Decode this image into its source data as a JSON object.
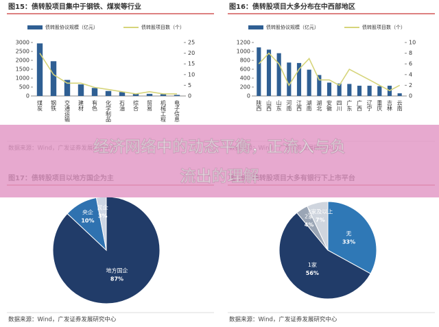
{
  "chart_data": [
    {
      "type": "bar",
      "title": "图15：债转股项目集中于钢铁、煤炭等行业",
      "source": "数据来源：Wind，广发证券发展研究中心",
      "categories": [
        "煤炭",
        "钢铁",
        "交通运输",
        "建材",
        "有色",
        "化学制品",
        "石油",
        "综合",
        "贸易",
        "机械工程",
        "电子信息"
      ],
      "series": [
        {
          "name": "债转股协议规模（亿元）",
          "color": "#2f5f93",
          "values": [
            2950,
            1950,
            900,
            650,
            450,
            280,
            220,
            130,
            120,
            100,
            60
          ]
        },
        {
          "name": "债转股项目数（个）",
          "color": "#d6d47a",
          "axis": "y2",
          "values": [
            20,
            10,
            6,
            6,
            4,
            3,
            2,
            1,
            2,
            1,
            1
          ]
        }
      ],
      "ylim": [
        0,
        3000
      ],
      "yticks": [
        0,
        500,
        1000,
        1500,
        2000,
        2500,
        3000
      ],
      "y2lim": [
        0,
        25
      ],
      "y2ticks": [
        0,
        5,
        10,
        15,
        20,
        25
      ]
    },
    {
      "type": "bar",
      "title": "图16：债转股项目大多分布在中西部地区",
      "source": "数据来源：Wind，广发证券发展研究中心",
      "categories": [
        "陕西",
        "山西",
        "山东",
        "河南",
        "江西",
        "湖南",
        "湖北",
        "安徽",
        "四川",
        "广东",
        "广西",
        "辽宁",
        "重庆",
        "吉林",
        "云南"
      ],
      "series": [
        {
          "name": "债转股协议规模（亿元）",
          "color": "#2f5f93",
          "values": [
            1090,
            1040,
            960,
            750,
            740,
            590,
            470,
            300,
            280,
            270,
            230,
            230,
            220,
            230,
            60
          ]
        },
        {
          "name": "债转股项目数（个）",
          "color": "#d6d47a",
          "axis": "y2",
          "values": [
            6,
            8,
            6,
            2,
            5,
            7,
            3,
            3,
            2,
            5,
            4,
            3,
            2,
            1,
            2
          ]
        }
      ],
      "ylim": [
        0,
        1200
      ],
      "yticks": [
        0,
        200,
        400,
        600,
        800,
        1000,
        1200
      ],
      "y2lim": [
        0,
        10
      ],
      "y2ticks": [
        0,
        2,
        4,
        6,
        8,
        10
      ]
    },
    {
      "type": "pie",
      "title": "图17：债转股项目以地方国企为主",
      "source": "数据来源：Wind，广发证券发展研究中心",
      "categories": [
        "地方国企",
        "央企",
        "民企"
      ],
      "values": [
        87,
        10,
        3
      ],
      "value_labels": [
        "87%",
        "10%",
        "3%"
      ],
      "colors": [
        "#213c69",
        "#2f72b0",
        "#cdd6e4"
      ]
    },
    {
      "type": "pie",
      "title": "图18：债转股项目大多有银行下上市平台",
      "source": "数据来源：Wind，广发证券发展研究中心",
      "categories": [
        "无",
        "1家",
        "2家",
        "3家及以上"
      ],
      "values": [
        33,
        56,
        4,
        7
      ],
      "value_labels": [
        "33%",
        "56%",
        "4%",
        "7%"
      ],
      "colors": [
        "#2f78b6",
        "#213c69",
        "#9aa5b5",
        "#cfd5de"
      ]
    }
  ],
  "banner": {
    "title_lines": [
      "经济网络中的动态平衡，正流入与负",
      "流出的理解"
    ]
  }
}
